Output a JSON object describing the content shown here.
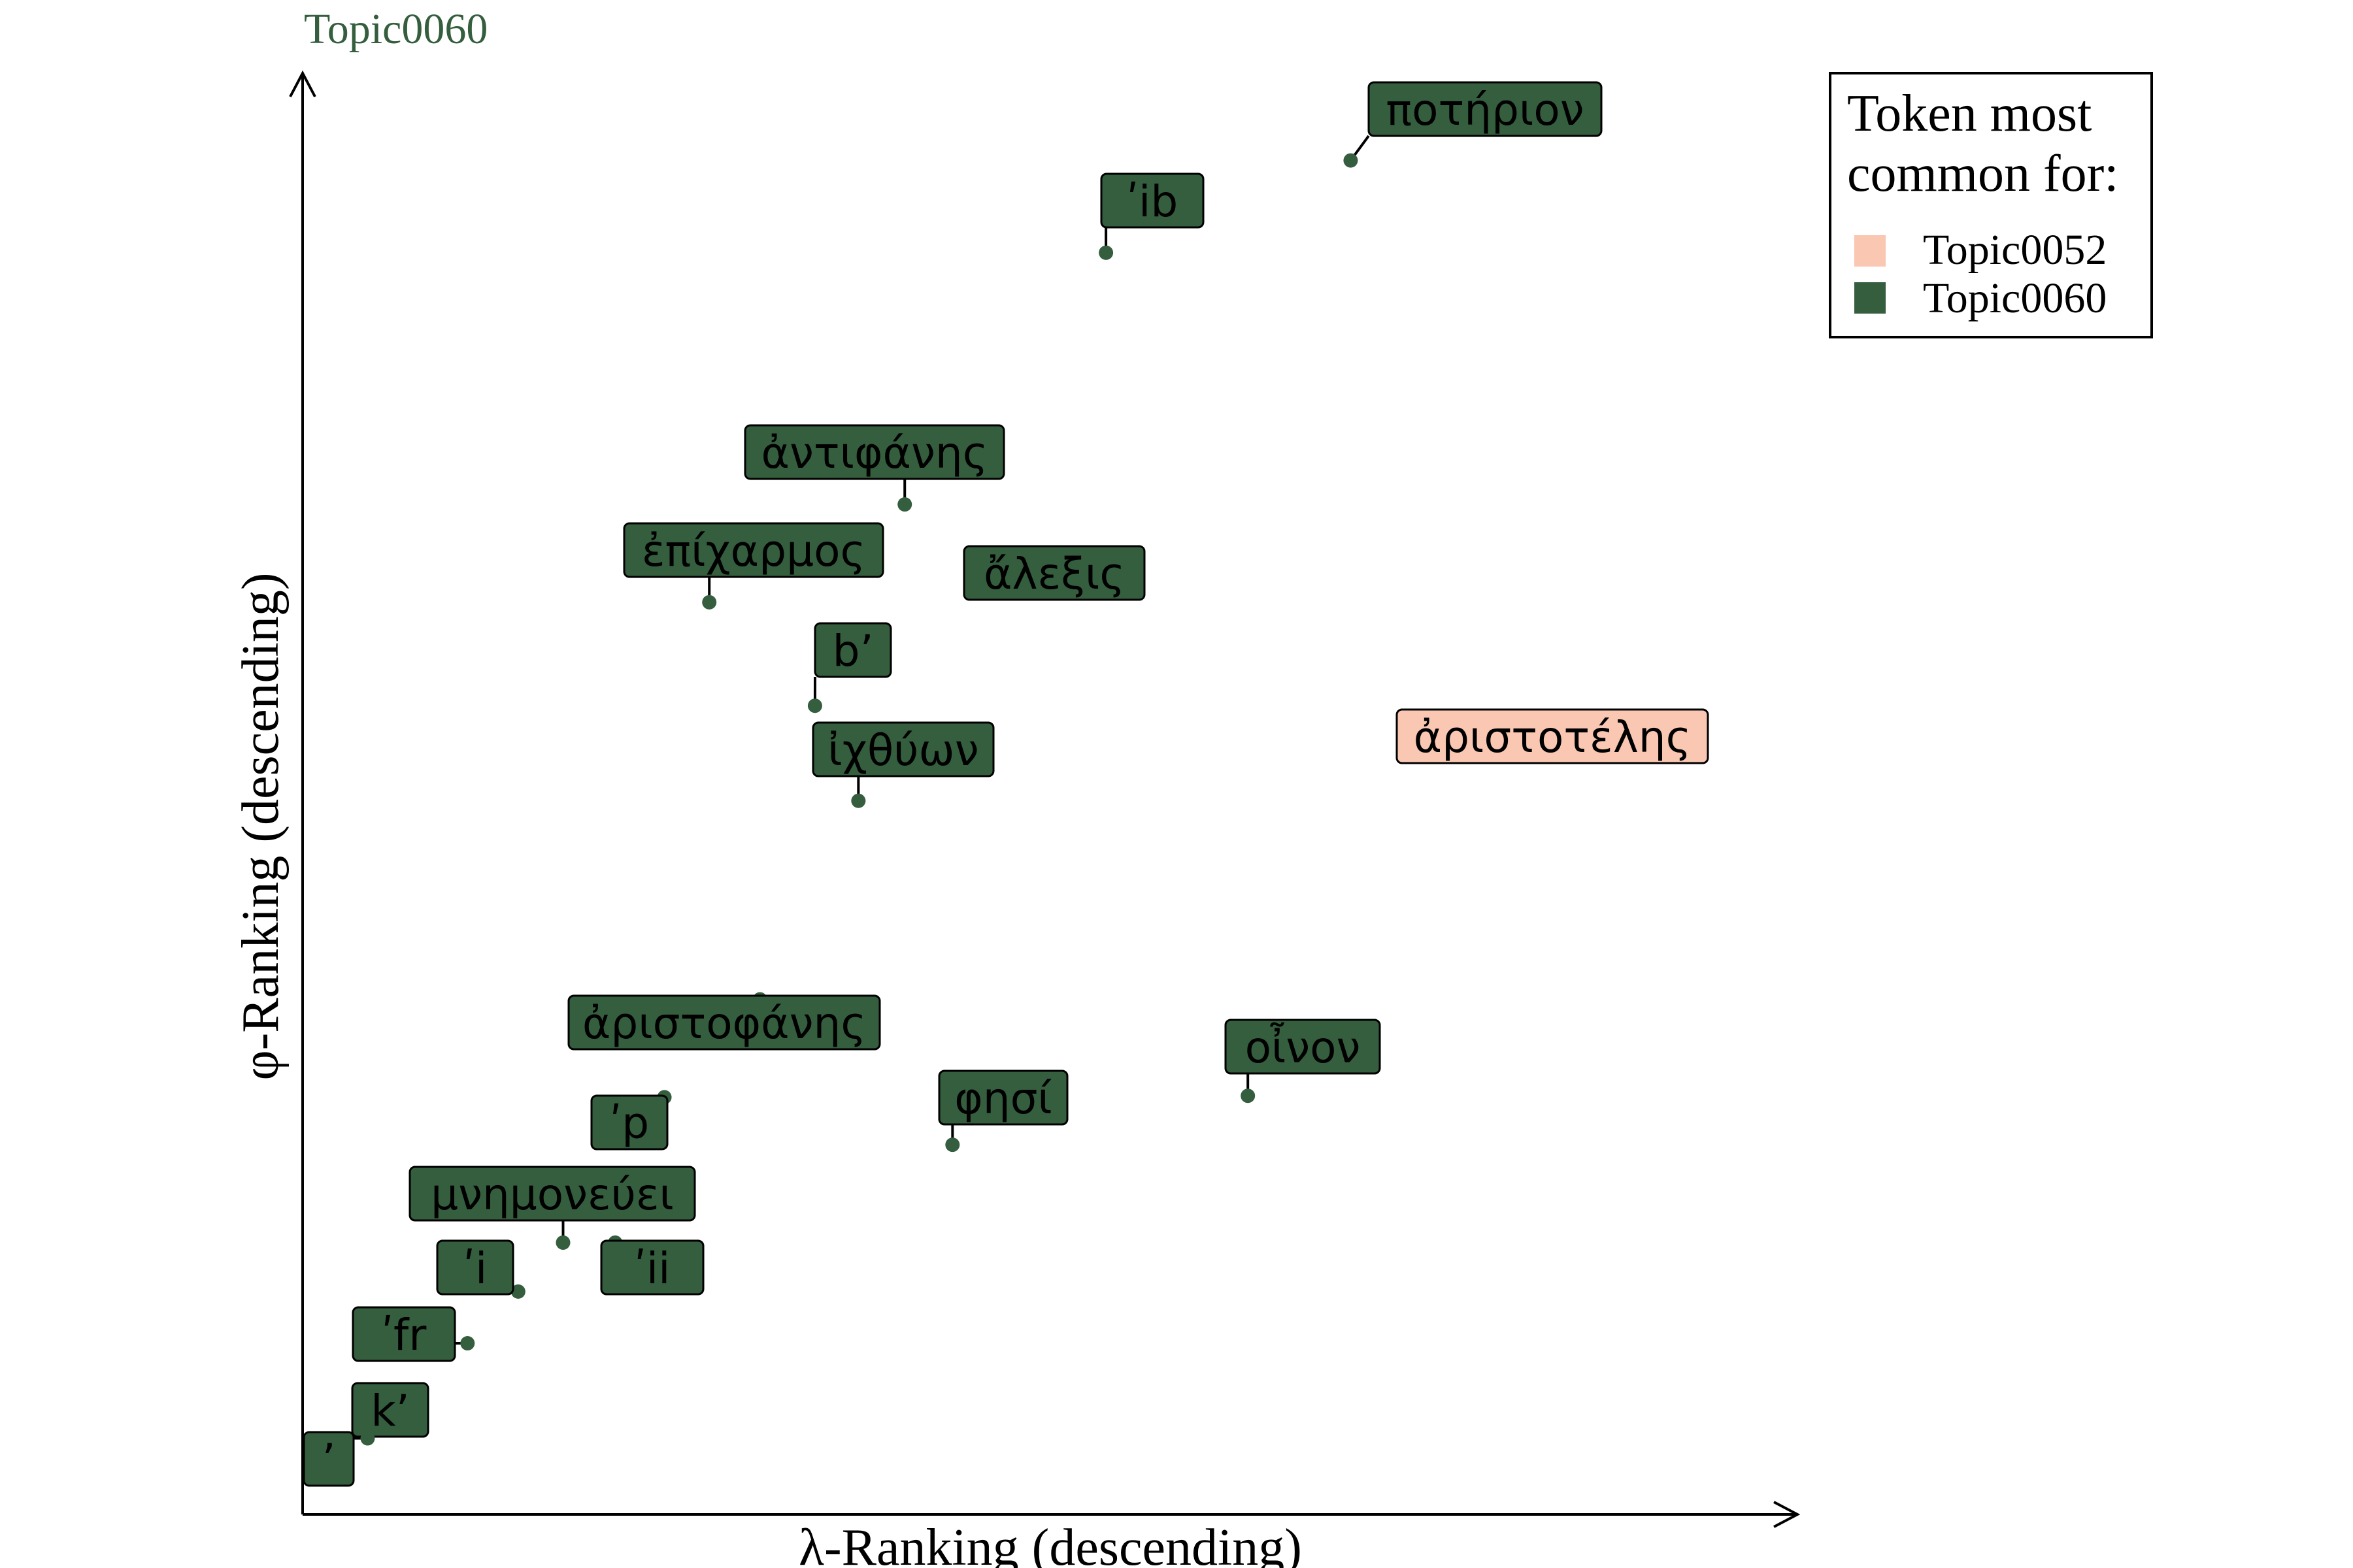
{
  "chart_data": {
    "type": "scatter",
    "title": "Topic0060",
    "xlabel": "λ-Ranking (descending)",
    "ylabel": "φ-Ranking (descending)",
    "xlim": [
      0,
      100
    ],
    "ylim": [
      0,
      100
    ],
    "grid": false,
    "legend": {
      "title_lines": [
        "Token most",
        "common for:"
      ],
      "position": "top-right",
      "entries": [
        {
          "name": "Topic0052",
          "color": "#F9C7B2"
        },
        {
          "name": "Topic0060",
          "color": "#345E3D"
        }
      ]
    },
    "colors": {
      "title": "#345E3D",
      "Topic0052": "#F9C7B2",
      "Topic0060": "#345E3D"
    },
    "points": [
      {
        "label": "ποτήριον",
        "x": 72.3,
        "y": 96.0,
        "topic": "Topic0060"
      },
      {
        "label": "ʹib",
        "x": 55.4,
        "y": 89.4,
        "topic": "Topic0060"
      },
      {
        "label": "ἀντιφάνης",
        "x": 41.5,
        "y": 71.4,
        "topic": "Topic0060"
      },
      {
        "label": "ἄλεξις",
        "x": 48.2,
        "y": 67.9,
        "topic": "Topic0060"
      },
      {
        "label": "ἐπίχαρμος",
        "x": 28.0,
        "y": 64.4,
        "topic": "Topic0060"
      },
      {
        "label": "b’",
        "x": 35.3,
        "y": 57.0,
        "topic": "Topic0060"
      },
      {
        "label": "ἀριστοτέλης",
        "x": 95.5,
        "y": 53.6,
        "topic": "Topic0052"
      },
      {
        "label": "ἰχθύων",
        "x": 38.3,
        "y": 50.2,
        "topic": "Topic0060"
      },
      {
        "label": "ἀριστοφάνης",
        "x": 31.5,
        "y": 36.0,
        "topic": "Topic0060"
      },
      {
        "label": "οἶνον",
        "x": 65.2,
        "y": 29.1,
        "topic": "Topic0060"
      },
      {
        "label": "ʹp",
        "x": 24.9,
        "y": 29.0,
        "topic": "Topic0060"
      },
      {
        "label": "φησί",
        "x": 44.8,
        "y": 25.6,
        "topic": "Topic0060"
      },
      {
        "label": "μνημονεύει",
        "x": 17.9,
        "y": 18.6,
        "topic": "Topic0060"
      },
      {
        "label": "ʹii",
        "x": 21.5,
        "y": 18.6,
        "topic": "Topic0060"
      },
      {
        "label": "ʹi",
        "x": 14.8,
        "y": 15.1,
        "topic": "Topic0060"
      },
      {
        "label": "ʹfr",
        "x": 11.3,
        "y": 11.4,
        "topic": "Topic0060"
      },
      {
        "label": "k’",
        "x": 7.9,
        "y": 8.1,
        "topic": "Topic0060"
      },
      {
        "label": "’",
        "x": 4.4,
        "y": 4.6,
        "topic": "Topic0060"
      }
    ]
  }
}
